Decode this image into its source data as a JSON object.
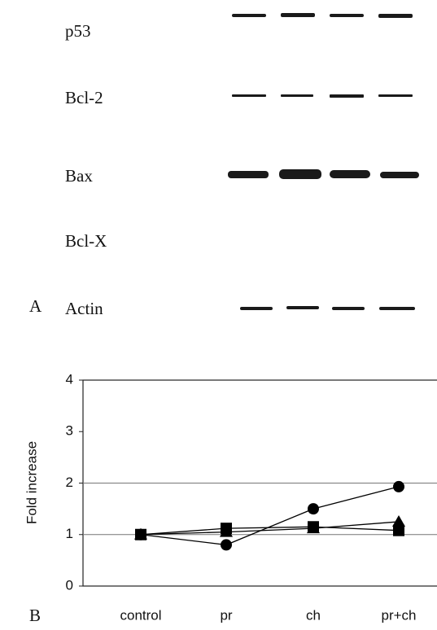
{
  "blot": {
    "panel_label": "A",
    "labels": [
      "p53",
      "Bcl-2",
      "Bax",
      "Bcl-X",
      "Actin"
    ]
  },
  "chart_data": {
    "type": "line",
    "panel_label": "B",
    "ylabel": "Fold increase",
    "categories": [
      "control",
      "pr",
      "ch",
      "pr+ch"
    ],
    "series": [
      {
        "marker": "circle",
        "color": "#000000",
        "values": [
          1,
          0.8,
          1.5,
          1.93
        ]
      },
      {
        "marker": "triangle",
        "color": "#000000",
        "values": [
          1,
          1.05,
          1.12,
          1.25
        ]
      },
      {
        "marker": "square",
        "color": "#000000",
        "values": [
          1,
          1.12,
          1.15,
          1.08
        ]
      }
    ],
    "ylim": [
      0,
      4
    ],
    "yticks": [
      0,
      1,
      2,
      3,
      4
    ],
    "grid_lines": [
      1,
      2
    ]
  }
}
